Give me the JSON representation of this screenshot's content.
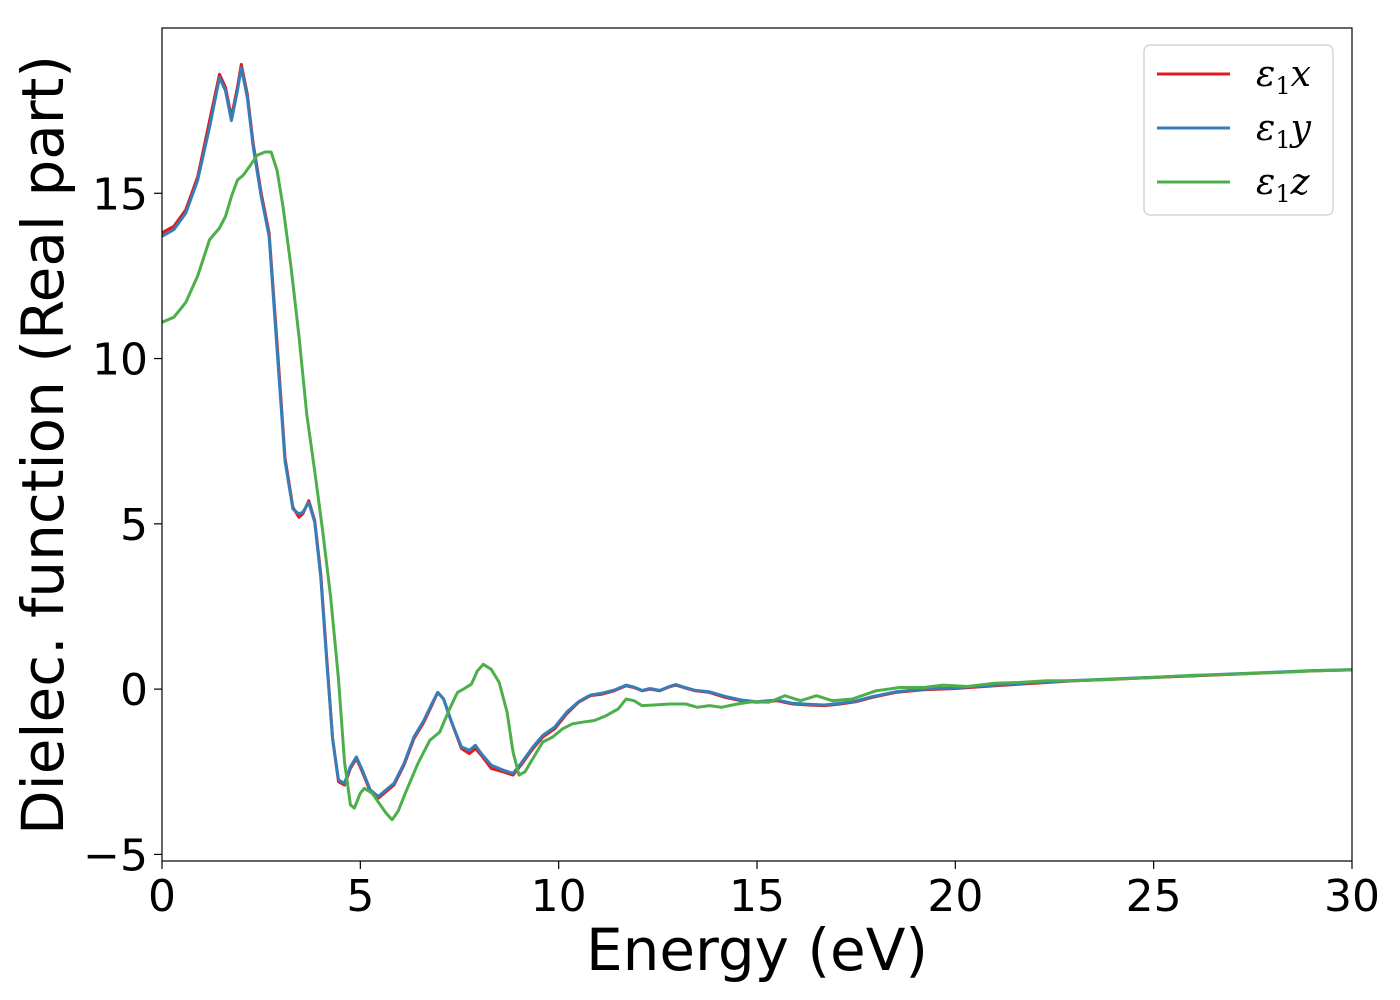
{
  "chart_data": {
    "type": "line",
    "xlabel": "Energy (eV)",
    "ylabel": "Dielec. function (Real part)",
    "xlim": [
      0,
      30
    ],
    "ylim": [
      -5.2,
      20
    ],
    "xticks": [
      0,
      5,
      10,
      15,
      20,
      25,
      30
    ],
    "xtick_labels": [
      "0",
      "5",
      "10",
      "15",
      "20",
      "25",
      "30"
    ],
    "yticks": [
      -5,
      0,
      5,
      10,
      15
    ],
    "ytick_labels": [
      "−5",
      "0",
      "5",
      "10",
      "15"
    ],
    "grid": false,
    "legend_position": "top-right",
    "series": [
      {
        "name": "ε1x",
        "legend_symbol": "ε",
        "legend_sub": "1",
        "legend_var": "x",
        "color": "#e41a1c",
        "points": [
          [
            0,
            13.8
          ],
          [
            0.3,
            14.0
          ],
          [
            0.6,
            14.5
          ],
          [
            0.9,
            15.5
          ],
          [
            1.2,
            17.2
          ],
          [
            1.45,
            18.6
          ],
          [
            1.6,
            18.2
          ],
          [
            1.75,
            17.3
          ],
          [
            1.9,
            18.2
          ],
          [
            2.0,
            18.9
          ],
          [
            2.15,
            18.0
          ],
          [
            2.3,
            16.5
          ],
          [
            2.5,
            15.0
          ],
          [
            2.7,
            13.8
          ],
          [
            2.9,
            10.5
          ],
          [
            3.1,
            7.0
          ],
          [
            3.3,
            5.5
          ],
          [
            3.45,
            5.2
          ],
          [
            3.55,
            5.3
          ],
          [
            3.7,
            5.7
          ],
          [
            3.85,
            5.1
          ],
          [
            4.0,
            3.5
          ],
          [
            4.15,
            1.0
          ],
          [
            4.3,
            -1.5
          ],
          [
            4.45,
            -2.8
          ],
          [
            4.6,
            -2.9
          ],
          [
            4.75,
            -2.4
          ],
          [
            4.9,
            -2.1
          ],
          [
            5.05,
            -2.5
          ],
          [
            5.25,
            -3.1
          ],
          [
            5.45,
            -3.3
          ],
          [
            5.65,
            -3.1
          ],
          [
            5.85,
            -2.9
          ],
          [
            6.1,
            -2.3
          ],
          [
            6.35,
            -1.5
          ],
          [
            6.6,
            -1.0
          ],
          [
            6.8,
            -0.5
          ],
          [
            6.95,
            -0.1
          ],
          [
            7.1,
            -0.3
          ],
          [
            7.3,
            -1.0
          ],
          [
            7.55,
            -1.8
          ],
          [
            7.75,
            -1.95
          ],
          [
            7.9,
            -1.8
          ],
          [
            8.05,
            -2.0
          ],
          [
            8.3,
            -2.4
          ],
          [
            8.6,
            -2.5
          ],
          [
            8.85,
            -2.6
          ],
          [
            9.05,
            -2.3
          ],
          [
            9.35,
            -1.8
          ],
          [
            9.6,
            -1.45
          ],
          [
            9.9,
            -1.2
          ],
          [
            10.2,
            -0.75
          ],
          [
            10.5,
            -0.4
          ],
          [
            10.8,
            -0.2
          ],
          [
            11.1,
            -0.15
          ],
          [
            11.4,
            -0.05
          ],
          [
            11.7,
            0.1
          ],
          [
            11.9,
            0.05
          ],
          [
            12.1,
            -0.05
          ],
          [
            12.3,
            0.0
          ],
          [
            12.55,
            -0.05
          ],
          [
            12.75,
            0.05
          ],
          [
            12.95,
            0.12
          ],
          [
            13.15,
            0.05
          ],
          [
            13.45,
            -0.05
          ],
          [
            13.8,
            -0.1
          ],
          [
            14.2,
            -0.25
          ],
          [
            14.6,
            -0.35
          ],
          [
            15.0,
            -0.4
          ],
          [
            15.5,
            -0.35
          ],
          [
            15.9,
            -0.45
          ],
          [
            16.3,
            -0.48
          ],
          [
            16.7,
            -0.5
          ],
          [
            17.1,
            -0.45
          ],
          [
            17.5,
            -0.38
          ],
          [
            17.9,
            -0.25
          ],
          [
            18.5,
            -0.1
          ],
          [
            19.2,
            -0.02
          ],
          [
            20.0,
            0.02
          ],
          [
            21.0,
            0.1
          ],
          [
            22.0,
            0.18
          ],
          [
            23.0,
            0.25
          ],
          [
            24.0,
            0.3
          ],
          [
            25.0,
            0.35
          ],
          [
            26.0,
            0.4
          ],
          [
            27.0,
            0.45
          ],
          [
            28.0,
            0.5
          ],
          [
            29.0,
            0.55
          ],
          [
            30.0,
            0.58
          ]
        ]
      },
      {
        "name": "ε1y",
        "legend_symbol": "ε",
        "legend_sub": "1",
        "legend_var": "y",
        "color": "#377eb8",
        "points": [
          [
            0,
            13.7
          ],
          [
            0.3,
            13.9
          ],
          [
            0.6,
            14.4
          ],
          [
            0.9,
            15.4
          ],
          [
            1.2,
            17.0
          ],
          [
            1.45,
            18.5
          ],
          [
            1.6,
            18.1
          ],
          [
            1.75,
            17.2
          ],
          [
            1.9,
            18.1
          ],
          [
            2.0,
            18.8
          ],
          [
            2.15,
            17.9
          ],
          [
            2.3,
            16.4
          ],
          [
            2.5,
            14.9
          ],
          [
            2.7,
            13.7
          ],
          [
            2.9,
            10.3
          ],
          [
            3.1,
            6.9
          ],
          [
            3.3,
            5.45
          ],
          [
            3.45,
            5.3
          ],
          [
            3.55,
            5.35
          ],
          [
            3.7,
            5.65
          ],
          [
            3.85,
            5.05
          ],
          [
            4.0,
            3.4
          ],
          [
            4.15,
            0.9
          ],
          [
            4.3,
            -1.5
          ],
          [
            4.45,
            -2.75
          ],
          [
            4.6,
            -2.85
          ],
          [
            4.75,
            -2.35
          ],
          [
            4.9,
            -2.05
          ],
          [
            5.05,
            -2.45
          ],
          [
            5.25,
            -3.05
          ],
          [
            5.45,
            -3.25
          ],
          [
            5.65,
            -3.05
          ],
          [
            5.85,
            -2.85
          ],
          [
            6.1,
            -2.25
          ],
          [
            6.35,
            -1.45
          ],
          [
            6.6,
            -0.95
          ],
          [
            6.8,
            -0.45
          ],
          [
            6.95,
            -0.1
          ],
          [
            7.1,
            -0.3
          ],
          [
            7.3,
            -1.0
          ],
          [
            7.55,
            -1.75
          ],
          [
            7.75,
            -1.85
          ],
          [
            7.9,
            -1.7
          ],
          [
            8.05,
            -1.95
          ],
          [
            8.3,
            -2.3
          ],
          [
            8.6,
            -2.45
          ],
          [
            8.85,
            -2.55
          ],
          [
            9.05,
            -2.25
          ],
          [
            9.35,
            -1.75
          ],
          [
            9.6,
            -1.4
          ],
          [
            9.9,
            -1.15
          ],
          [
            10.2,
            -0.7
          ],
          [
            10.5,
            -0.38
          ],
          [
            10.8,
            -0.18
          ],
          [
            11.1,
            -0.12
          ],
          [
            11.4,
            -0.03
          ],
          [
            11.7,
            0.12
          ],
          [
            11.9,
            0.06
          ],
          [
            12.1,
            -0.04
          ],
          [
            12.3,
            0.02
          ],
          [
            12.55,
            -0.04
          ],
          [
            12.75,
            0.06
          ],
          [
            12.95,
            0.14
          ],
          [
            13.15,
            0.06
          ],
          [
            13.45,
            -0.04
          ],
          [
            13.8,
            -0.08
          ],
          [
            14.2,
            -0.22
          ],
          [
            14.6,
            -0.33
          ],
          [
            15.0,
            -0.38
          ],
          [
            15.5,
            -0.33
          ],
          [
            15.9,
            -0.43
          ],
          [
            16.3,
            -0.46
          ],
          [
            16.7,
            -0.48
          ],
          [
            17.1,
            -0.43
          ],
          [
            17.5,
            -0.36
          ],
          [
            17.9,
            -0.23
          ],
          [
            18.5,
            -0.08
          ],
          [
            19.2,
            0.0
          ],
          [
            20.0,
            0.04
          ],
          [
            21.0,
            0.12
          ],
          [
            22.0,
            0.2
          ],
          [
            23.0,
            0.26
          ],
          [
            24.0,
            0.31
          ],
          [
            25.0,
            0.36
          ],
          [
            26.0,
            0.41
          ],
          [
            27.0,
            0.46
          ],
          [
            28.0,
            0.51
          ],
          [
            29.0,
            0.56
          ],
          [
            30.0,
            0.59
          ]
        ]
      },
      {
        "name": "ε1z",
        "legend_symbol": "ε",
        "legend_sub": "1",
        "legend_var": "z",
        "color": "#4daf4a",
        "points": [
          [
            0,
            11.1
          ],
          [
            0.3,
            11.25
          ],
          [
            0.6,
            11.7
          ],
          [
            0.9,
            12.5
          ],
          [
            1.2,
            13.6
          ],
          [
            1.45,
            13.95
          ],
          [
            1.6,
            14.3
          ],
          [
            1.75,
            14.9
          ],
          [
            1.9,
            15.4
          ],
          [
            2.05,
            15.55
          ],
          [
            2.2,
            15.8
          ],
          [
            2.4,
            16.15
          ],
          [
            2.6,
            16.25
          ],
          [
            2.75,
            16.25
          ],
          [
            2.9,
            15.7
          ],
          [
            3.05,
            14.6
          ],
          [
            3.25,
            12.8
          ],
          [
            3.45,
            10.7
          ],
          [
            3.65,
            8.3
          ],
          [
            3.85,
            6.6
          ],
          [
            4.05,
            4.8
          ],
          [
            4.25,
            2.8
          ],
          [
            4.45,
            0.3
          ],
          [
            4.6,
            -2.2
          ],
          [
            4.75,
            -3.5
          ],
          [
            4.85,
            -3.6
          ],
          [
            5.0,
            -3.15
          ],
          [
            5.1,
            -3.0
          ],
          [
            5.3,
            -3.15
          ],
          [
            5.5,
            -3.5
          ],
          [
            5.65,
            -3.75
          ],
          [
            5.8,
            -3.95
          ],
          [
            5.95,
            -3.7
          ],
          [
            6.15,
            -3.1
          ],
          [
            6.45,
            -2.25
          ],
          [
            6.75,
            -1.55
          ],
          [
            7.0,
            -1.3
          ],
          [
            7.25,
            -0.6
          ],
          [
            7.45,
            -0.1
          ],
          [
            7.6,
            0.0
          ],
          [
            7.8,
            0.15
          ],
          [
            7.95,
            0.55
          ],
          [
            8.1,
            0.75
          ],
          [
            8.3,
            0.6
          ],
          [
            8.5,
            0.2
          ],
          [
            8.7,
            -0.7
          ],
          [
            8.85,
            -1.9
          ],
          [
            9.0,
            -2.6
          ],
          [
            9.15,
            -2.5
          ],
          [
            9.35,
            -2.1
          ],
          [
            9.6,
            -1.6
          ],
          [
            9.85,
            -1.45
          ],
          [
            10.1,
            -1.2
          ],
          [
            10.35,
            -1.05
          ],
          [
            10.6,
            -1.0
          ],
          [
            10.9,
            -0.95
          ],
          [
            11.2,
            -0.8
          ],
          [
            11.5,
            -0.6
          ],
          [
            11.7,
            -0.3
          ],
          [
            11.9,
            -0.35
          ],
          [
            12.1,
            -0.5
          ],
          [
            12.4,
            -0.48
          ],
          [
            12.8,
            -0.45
          ],
          [
            13.2,
            -0.45
          ],
          [
            13.5,
            -0.55
          ],
          [
            13.8,
            -0.5
          ],
          [
            14.1,
            -0.55
          ],
          [
            14.5,
            -0.45
          ],
          [
            14.9,
            -0.38
          ],
          [
            15.3,
            -0.4
          ],
          [
            15.7,
            -0.2
          ],
          [
            16.1,
            -0.35
          ],
          [
            16.5,
            -0.2
          ],
          [
            16.9,
            -0.35
          ],
          [
            17.4,
            -0.3
          ],
          [
            18.0,
            -0.05
          ],
          [
            18.6,
            0.05
          ],
          [
            19.2,
            0.05
          ],
          [
            19.7,
            0.12
          ],
          [
            20.3,
            0.08
          ],
          [
            21.0,
            0.18
          ],
          [
            21.6,
            0.2
          ],
          [
            22.3,
            0.25
          ],
          [
            23.0,
            0.25
          ],
          [
            24.0,
            0.3
          ],
          [
            25.0,
            0.35
          ],
          [
            26.0,
            0.42
          ],
          [
            27.0,
            0.45
          ],
          [
            28.0,
            0.5
          ],
          [
            29.0,
            0.55
          ],
          [
            30.0,
            0.58
          ]
        ]
      }
    ]
  }
}
